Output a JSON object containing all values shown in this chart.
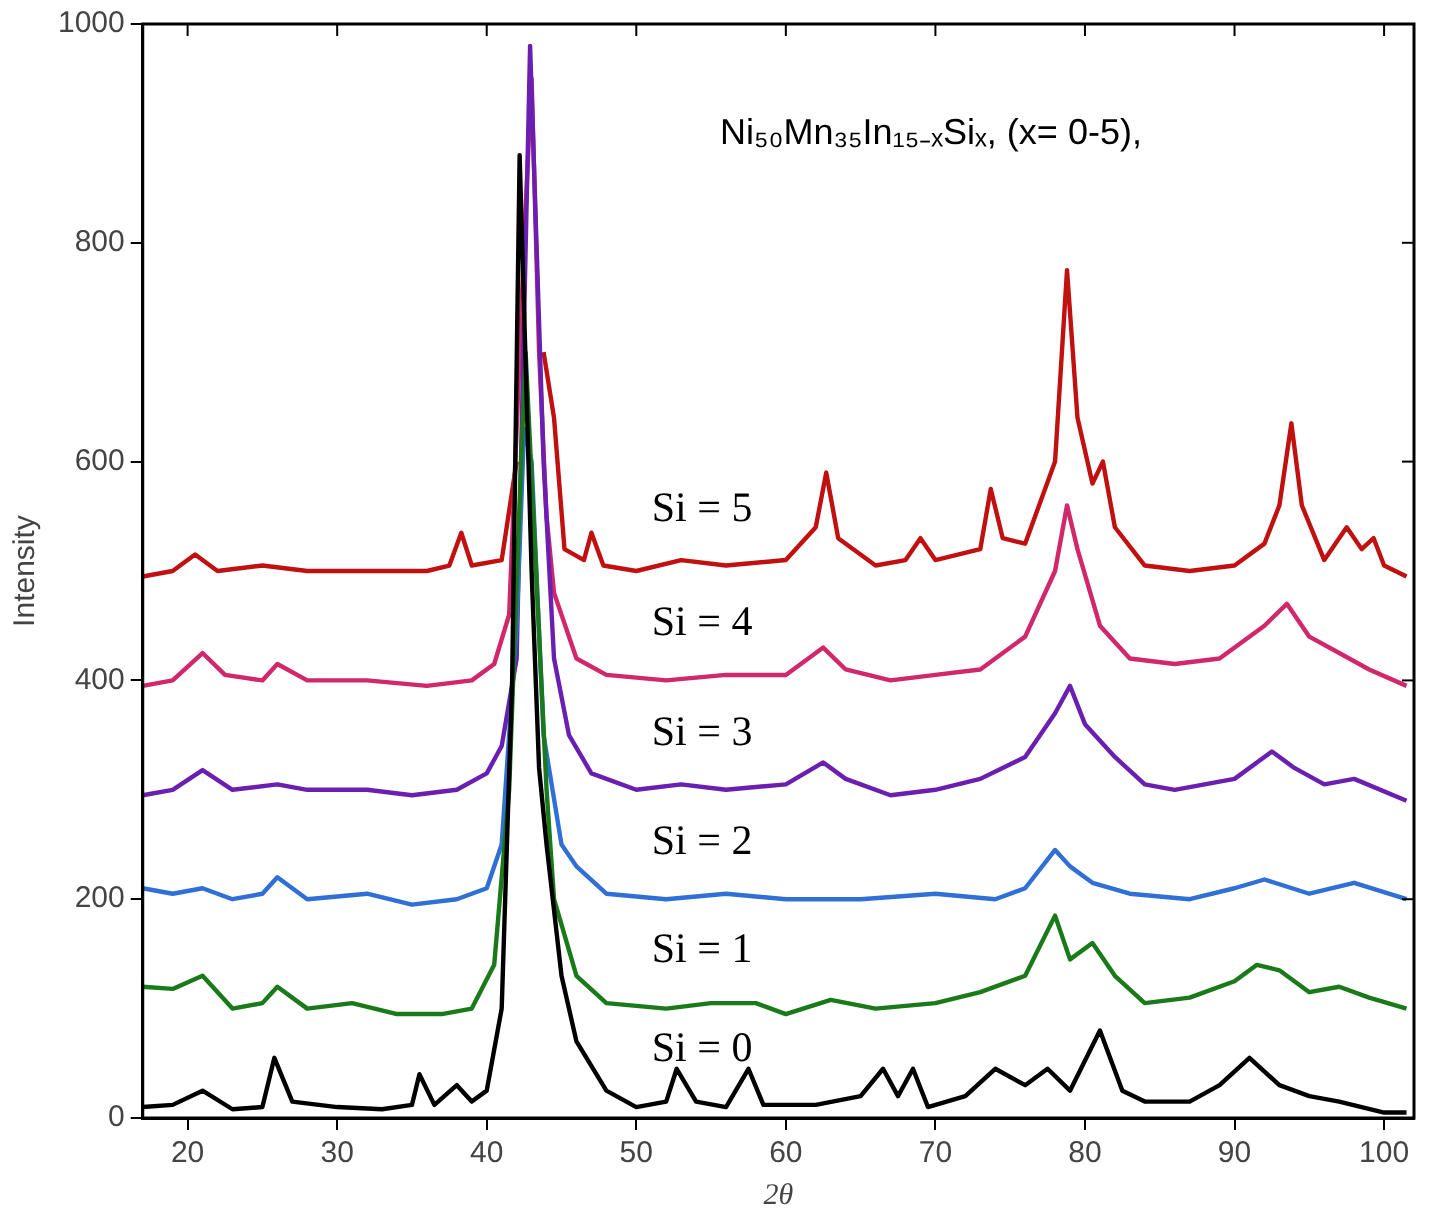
{
  "chart_data": {
    "type": "line",
    "title": "Ni₅₀Mn₃₅In₁₅₋ₓSiₓ, (x= 0-5),",
    "xlabel": "2θ",
    "ylabel": "Intensity",
    "xlim": [
      17,
      102
    ],
    "xticks": [
      20,
      30,
      40,
      50,
      60,
      70,
      80,
      90,
      100
    ],
    "ylim": [
      0,
      1000
    ],
    "yticks": [
      0,
      200,
      400,
      600,
      800,
      1000
    ],
    "grid": false,
    "legend": false,
    "marker": "none",
    "line_style": "solid",
    "series": [
      {
        "name": "Si = 0",
        "color": "#000000",
        "x": [
          17,
          19,
          21,
          23,
          25,
          25.8,
          27,
          30,
          33,
          35,
          35.5,
          36.5,
          38,
          39,
          40,
          41,
          41.7,
          42.2,
          43,
          43.5,
          44,
          45,
          46,
          48,
          50,
          52,
          52.7,
          54,
          56,
          57.5,
          58.5,
          62,
          65,
          66.5,
          67.5,
          68.5,
          69.5,
          72,
          74,
          76,
          77.5,
          79,
          81,
          82.5,
          84,
          87,
          89,
          91,
          93,
          95,
          97,
          100,
          101.5
        ],
        "values": [
          10,
          12,
          25,
          8,
          10,
          55,
          15,
          10,
          8,
          12,
          40,
          12,
          30,
          15,
          25,
          100,
          400,
          880,
          500,
          320,
          250,
          130,
          70,
          25,
          10,
          15,
          45,
          15,
          10,
          45,
          12,
          12,
          20,
          45,
          20,
          45,
          10,
          20,
          45,
          30,
          45,
          25,
          80,
          25,
          15,
          15,
          30,
          55,
          30,
          20,
          15,
          5,
          5
        ]
      },
      {
        "name": "Si = 1",
        "color": "#1a7a1a",
        "x": [
          17,
          19,
          21,
          23,
          25,
          26,
          28,
          31,
          34,
          37,
          39,
          40.5,
          41.5,
          42.3,
          42.6,
          43.3,
          44,
          44.5,
          46,
          48,
          52,
          55,
          58,
          60,
          63,
          66,
          70,
          73,
          76,
          78,
          79,
          80.5,
          82,
          84,
          87,
          90,
          91.5,
          93,
          95,
          97,
          99,
          101.5
        ],
        "values": [
          120,
          118,
          130,
          100,
          105,
          120,
          100,
          105,
          95,
          95,
          100,
          140,
          300,
          600,
          700,
          500,
          300,
          200,
          130,
          105,
          100,
          105,
          105,
          95,
          108,
          100,
          105,
          115,
          130,
          185,
          145,
          160,
          130,
          105,
          110,
          125,
          140,
          135,
          115,
          120,
          110,
          100
        ]
      },
      {
        "name": "Si = 2",
        "color": "#2f6fd6",
        "x": [
          17,
          19,
          21,
          23,
          25,
          26,
          28,
          32,
          35,
          38,
          40,
          41,
          42,
          42.5,
          43,
          43.8,
          45,
          46,
          48,
          52,
          56,
          60,
          65,
          70,
          74,
          76,
          78,
          79,
          80.5,
          83,
          87,
          90,
          92,
          95,
          98,
          101.5
        ],
        "values": [
          210,
          205,
          210,
          200,
          205,
          220,
          200,
          205,
          195,
          200,
          210,
          250,
          450,
          630,
          600,
          350,
          250,
          230,
          205,
          200,
          205,
          200,
          200,
          205,
          200,
          210,
          245,
          230,
          215,
          205,
          200,
          210,
          218,
          205,
          215,
          200
        ]
      },
      {
        "name": "Si = 3",
        "color": "#6a1fb0",
        "x": [
          17,
          19,
          21,
          23,
          26,
          28,
          32,
          35,
          38,
          40,
          41,
          42,
          42.9,
          43.8,
          44.5,
          45.5,
          47,
          50,
          53,
          56,
          60,
          62.5,
          64,
          67,
          70,
          73,
          76,
          78,
          79,
          80,
          82,
          84,
          86,
          90,
          92.5,
          94,
          96,
          98,
          101.5
        ],
        "values": [
          295,
          300,
          318,
          300,
          305,
          300,
          300,
          295,
          300,
          315,
          340,
          420,
          980,
          600,
          420,
          350,
          315,
          300,
          305,
          300,
          305,
          325,
          310,
          295,
          300,
          310,
          330,
          370,
          395,
          360,
          330,
          305,
          300,
          310,
          335,
          320,
          305,
          310,
          290
        ]
      },
      {
        "name": "Si = 4",
        "color": "#d0286a",
        "x": [
          17,
          19,
          21,
          22.5,
          25,
          26,
          28,
          32,
          36,
          39,
          40.5,
          41.5,
          42.5,
          43,
          43.5,
          44,
          44.5,
          46,
          48,
          52,
          56,
          60,
          62.5,
          64,
          67,
          70,
          73,
          76,
          78,
          78.8,
          79.5,
          81,
          83,
          86,
          89,
          92,
          93.5,
          95,
          97,
          99,
          101.5
        ],
        "values": [
          395,
          400,
          425,
          405,
          400,
          415,
          400,
          400,
          395,
          400,
          415,
          460,
          800,
          950,
          700,
          550,
          480,
          420,
          405,
          400,
          405,
          405,
          430,
          410,
          400,
          405,
          410,
          440,
          500,
          560,
          520,
          450,
          420,
          415,
          420,
          450,
          470,
          440,
          425,
          410,
          395
        ]
      },
      {
        "name": "Si = 5",
        "color": "#c01010",
        "x": [
          17,
          19,
          20.5,
          22,
          25,
          28,
          32,
          36,
          37.5,
          38.3,
          39,
          41,
          42,
          43,
          43.8,
          44.5,
          45.2,
          46.5,
          47,
          47.8,
          50,
          53,
          56,
          60,
          62,
          62.7,
          63.5,
          66,
          68,
          69,
          70,
          73,
          73.7,
          74.5,
          76,
          78,
          78.8,
          79.5,
          80.5,
          81.2,
          82,
          84,
          87,
          90,
          92,
          93,
          93.8,
          94.5,
          96,
          97.5,
          98.5,
          99.3,
          100,
          101.5
        ],
        "values": [
          495,
          500,
          515,
          500,
          505,
          500,
          500,
          500,
          505,
          535,
          505,
          510,
          600,
          null,
          700,
          640,
          520,
          510,
          535,
          505,
          500,
          510,
          505,
          510,
          540,
          590,
          530,
          505,
          510,
          530,
          510,
          520,
          575,
          530,
          525,
          600,
          775,
          640,
          580,
          600,
          540,
          505,
          500,
          505,
          525,
          560,
          635,
          560,
          510,
          540,
          520,
          530,
          505,
          495
        ]
      }
    ]
  }
}
